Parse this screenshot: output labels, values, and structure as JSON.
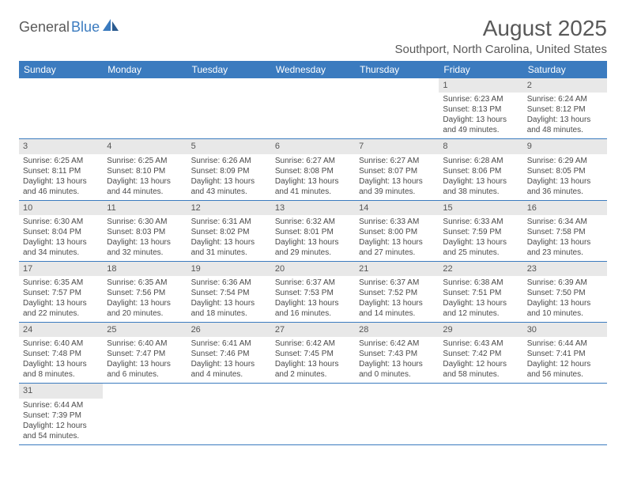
{
  "logo": {
    "part1": "General",
    "part2": "Blue"
  },
  "title": "August 2025",
  "location": "Southport, North Carolina, United States",
  "colors": {
    "header_bg": "#3b7bbf",
    "header_text": "#ffffff",
    "daynum_bg": "#e8e8e8",
    "text": "#4a4a4a",
    "border": "#3b7bbf"
  },
  "weekdays": [
    "Sunday",
    "Monday",
    "Tuesday",
    "Wednesday",
    "Thursday",
    "Friday",
    "Saturday"
  ],
  "weeks": [
    [
      null,
      null,
      null,
      null,
      null,
      {
        "n": "1",
        "r": "6:23 AM",
        "s": "8:13 PM",
        "d": "13 hours and 49 minutes."
      },
      {
        "n": "2",
        "r": "6:24 AM",
        "s": "8:12 PM",
        "d": "13 hours and 48 minutes."
      }
    ],
    [
      {
        "n": "3",
        "r": "6:25 AM",
        "s": "8:11 PM",
        "d": "13 hours and 46 minutes."
      },
      {
        "n": "4",
        "r": "6:25 AM",
        "s": "8:10 PM",
        "d": "13 hours and 44 minutes."
      },
      {
        "n": "5",
        "r": "6:26 AM",
        "s": "8:09 PM",
        "d": "13 hours and 43 minutes."
      },
      {
        "n": "6",
        "r": "6:27 AM",
        "s": "8:08 PM",
        "d": "13 hours and 41 minutes."
      },
      {
        "n": "7",
        "r": "6:27 AM",
        "s": "8:07 PM",
        "d": "13 hours and 39 minutes."
      },
      {
        "n": "8",
        "r": "6:28 AM",
        "s": "8:06 PM",
        "d": "13 hours and 38 minutes."
      },
      {
        "n": "9",
        "r": "6:29 AM",
        "s": "8:05 PM",
        "d": "13 hours and 36 minutes."
      }
    ],
    [
      {
        "n": "10",
        "r": "6:30 AM",
        "s": "8:04 PM",
        "d": "13 hours and 34 minutes."
      },
      {
        "n": "11",
        "r": "6:30 AM",
        "s": "8:03 PM",
        "d": "13 hours and 32 minutes."
      },
      {
        "n": "12",
        "r": "6:31 AM",
        "s": "8:02 PM",
        "d": "13 hours and 31 minutes."
      },
      {
        "n": "13",
        "r": "6:32 AM",
        "s": "8:01 PM",
        "d": "13 hours and 29 minutes."
      },
      {
        "n": "14",
        "r": "6:33 AM",
        "s": "8:00 PM",
        "d": "13 hours and 27 minutes."
      },
      {
        "n": "15",
        "r": "6:33 AM",
        "s": "7:59 PM",
        "d": "13 hours and 25 minutes."
      },
      {
        "n": "16",
        "r": "6:34 AM",
        "s": "7:58 PM",
        "d": "13 hours and 23 minutes."
      }
    ],
    [
      {
        "n": "17",
        "r": "6:35 AM",
        "s": "7:57 PM",
        "d": "13 hours and 22 minutes."
      },
      {
        "n": "18",
        "r": "6:35 AM",
        "s": "7:56 PM",
        "d": "13 hours and 20 minutes."
      },
      {
        "n": "19",
        "r": "6:36 AM",
        "s": "7:54 PM",
        "d": "13 hours and 18 minutes."
      },
      {
        "n": "20",
        "r": "6:37 AM",
        "s": "7:53 PM",
        "d": "13 hours and 16 minutes."
      },
      {
        "n": "21",
        "r": "6:37 AM",
        "s": "7:52 PM",
        "d": "13 hours and 14 minutes."
      },
      {
        "n": "22",
        "r": "6:38 AM",
        "s": "7:51 PM",
        "d": "13 hours and 12 minutes."
      },
      {
        "n": "23",
        "r": "6:39 AM",
        "s": "7:50 PM",
        "d": "13 hours and 10 minutes."
      }
    ],
    [
      {
        "n": "24",
        "r": "6:40 AM",
        "s": "7:48 PM",
        "d": "13 hours and 8 minutes."
      },
      {
        "n": "25",
        "r": "6:40 AM",
        "s": "7:47 PM",
        "d": "13 hours and 6 minutes."
      },
      {
        "n": "26",
        "r": "6:41 AM",
        "s": "7:46 PM",
        "d": "13 hours and 4 minutes."
      },
      {
        "n": "27",
        "r": "6:42 AM",
        "s": "7:45 PM",
        "d": "13 hours and 2 minutes."
      },
      {
        "n": "28",
        "r": "6:42 AM",
        "s": "7:43 PM",
        "d": "13 hours and 0 minutes."
      },
      {
        "n": "29",
        "r": "6:43 AM",
        "s": "7:42 PM",
        "d": "12 hours and 58 minutes."
      },
      {
        "n": "30",
        "r": "6:44 AM",
        "s": "7:41 PM",
        "d": "12 hours and 56 minutes."
      }
    ],
    [
      {
        "n": "31",
        "r": "6:44 AM",
        "s": "7:39 PM",
        "d": "12 hours and 54 minutes."
      },
      null,
      null,
      null,
      null,
      null,
      null
    ]
  ],
  "labels": {
    "sunrise": "Sunrise:",
    "sunset": "Sunset:",
    "daylight": "Daylight:"
  }
}
